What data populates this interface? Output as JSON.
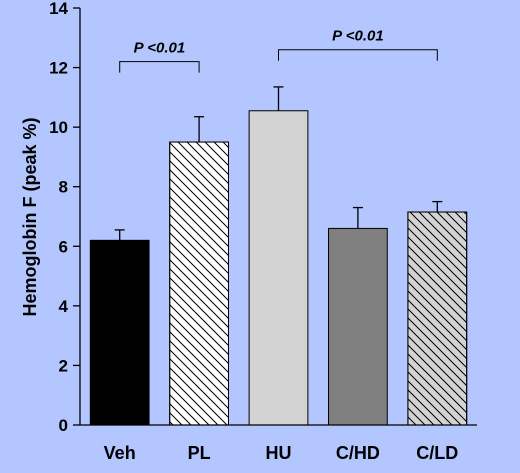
{
  "chart_data": {
    "type": "bar",
    "categories": [
      "Veh",
      "PL",
      "HU",
      "C/HD",
      "C/LD"
    ],
    "values": [
      6.2,
      9.5,
      10.55,
      6.6,
      7.15
    ],
    "errors": [
      0.35,
      0.85,
      0.8,
      0.7,
      0.35
    ],
    "bar_styles": [
      {
        "fill": "#000000",
        "pattern": "none"
      },
      {
        "fill": "#ffffff",
        "pattern": "hatch"
      },
      {
        "fill": "#d3d3d3",
        "pattern": "none"
      },
      {
        "fill": "#808080",
        "pattern": "none"
      },
      {
        "fill": "#d3d3d3",
        "pattern": "hatch"
      }
    ],
    "ylabel": "Hemoglobin F (peak %)",
    "xlabel": "",
    "ylim": [
      0,
      14
    ],
    "yticks": [
      0,
      2,
      4,
      6,
      8,
      10,
      12,
      14
    ],
    "grid": false,
    "annotations": [
      {
        "text": "P <0.01",
        "from_category": 0,
        "to_category": 1,
        "level": 12.2
      },
      {
        "text": "P <0.01",
        "from_category": 2,
        "to_category": 4,
        "level": 12.6
      }
    ],
    "background": "#b3c6ff"
  }
}
